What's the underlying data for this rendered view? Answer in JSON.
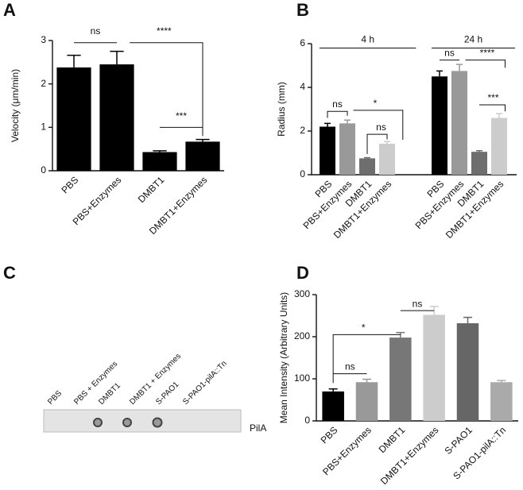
{
  "chart_data": [
    {
      "type": "bar",
      "title": "A",
      "ylabel": "Velocity (μm/min)",
      "categories": [
        "PBS",
        "PBS+Enzymes",
        "DMBT1",
        "DMBT1+Enzymes"
      ],
      "values": [
        2.38,
        2.45,
        0.43,
        0.67
      ],
      "errors": [
        0.28,
        0.3,
        0.03,
        0.05
      ],
      "colors": [
        "#000000",
        "#000000",
        "#000000",
        "#000000"
      ],
      "ylim": [
        0,
        3
      ],
      "yticks": [
        0,
        1,
        2,
        3
      ],
      "annotations": [
        "ns",
        "****",
        "***"
      ]
    },
    {
      "type": "bar",
      "title": "B",
      "ylabel": "Radius (mm)",
      "groups": [
        "4 h",
        "24 h"
      ],
      "categories": [
        "PBS",
        "PBS+Enzymes",
        "DMBT1",
        "DMBT1+Enzymes",
        "PBS",
        "PBS+Enzymes",
        "DMBT1",
        "DMBT1+Enzymes"
      ],
      "values": [
        2.2,
        2.35,
        0.75,
        1.42,
        4.5,
        4.75,
        1.05,
        2.6
      ],
      "errors": [
        0.15,
        0.15,
        0.03,
        0.1,
        0.25,
        0.3,
        0.05,
        0.2
      ],
      "colors": [
        "#000000",
        "#999999",
        "#6e6e6e",
        "#cccccc",
        "#000000",
        "#999999",
        "#6e6e6e",
        "#cccccc"
      ],
      "ylim": [
        0,
        6
      ],
      "yticks": [
        0,
        2,
        4,
        6
      ],
      "annotations": [
        "ns",
        "*",
        "ns",
        "ns",
        "****",
        "***"
      ]
    },
    {
      "type": "blot",
      "title": "C",
      "categories": [
        "PBS",
        "PBS + Enzymes",
        "DMBT1",
        "DMBT1 + Enzymes",
        "S-PAO1",
        "S-PAO1-pilA::Tn"
      ],
      "band_label": "PilA"
    },
    {
      "type": "bar",
      "title": "D",
      "ylabel": "Mean Intensity (Arbitrary Units)",
      "categories": [
        "PBS",
        "PBS+Enzymes",
        "DMBT1",
        "DMBT1+Enzymes",
        "S-PAO1",
        "S-PAO1-pilA::Tn"
      ],
      "values": [
        70,
        92,
        198,
        252,
        232,
        92
      ],
      "errors": [
        6,
        7,
        12,
        20,
        14,
        4
      ],
      "colors": [
        "#000000",
        "#999999",
        "#777777",
        "#cccccc",
        "#666666",
        "#aaaaaa"
      ],
      "ylim": [
        0,
        300
      ],
      "yticks": [
        0,
        100,
        200,
        300
      ],
      "annotations": [
        "ns",
        "*",
        "ns"
      ]
    }
  ]
}
